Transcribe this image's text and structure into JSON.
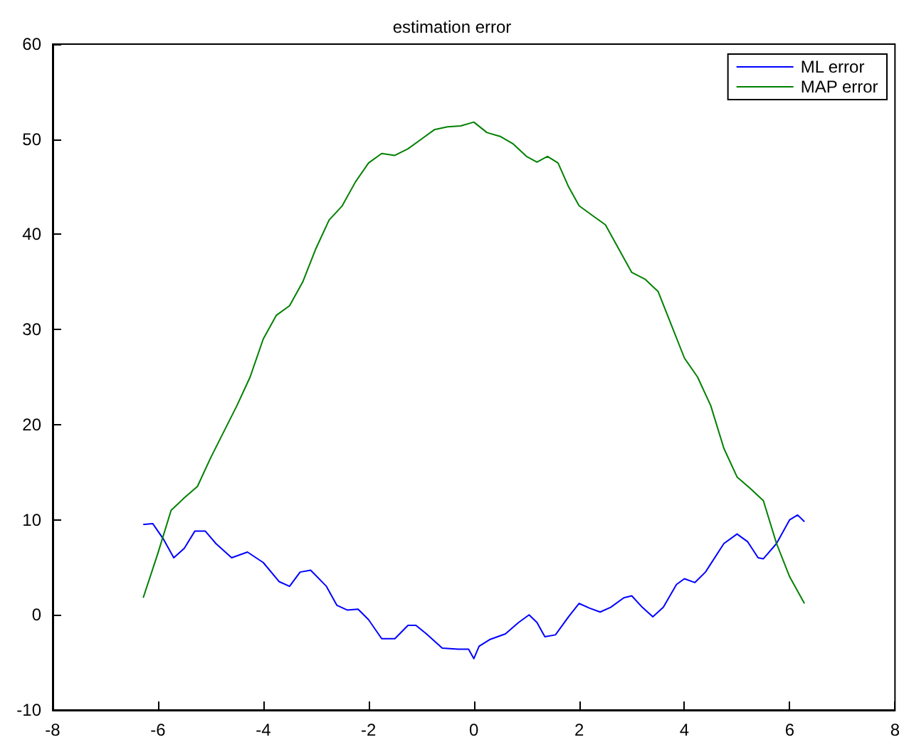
{
  "chart_data": {
    "type": "line",
    "title": "estimation error",
    "xlim": [
      -8,
      8
    ],
    "xticks": [
      -8,
      -6,
      -4,
      -2,
      0,
      2,
      4,
      6,
      8
    ],
    "ylim": [
      -10,
      60
    ],
    "yticks": [
      -10,
      0,
      10,
      20,
      30,
      40,
      50,
      60
    ],
    "grid": false,
    "legend": "top right",
    "marker": "none",
    "line_style": "solid",
    "series": [
      {
        "name": "ML error",
        "color": "#0000ff",
        "x": [
          -6.28,
          -6.1,
          -5.9,
          -5.7,
          -5.5,
          -5.3,
          -5.1,
          -4.9,
          -4.6,
          -4.3,
          -4.0,
          -3.7,
          -3.5,
          -3.3,
          -3.1,
          -2.8,
          -2.6,
          -2.4,
          -2.2,
          -2.0,
          -1.75,
          -1.5,
          -1.25,
          -1.1,
          -0.9,
          -0.6,
          -0.3,
          -0.1,
          0,
          0.1,
          0.3,
          0.6,
          0.85,
          1.05,
          1.2,
          1.35,
          1.55,
          1.8,
          2.0,
          2.2,
          2.4,
          2.6,
          2.85,
          3.0,
          3.2,
          3.4,
          3.6,
          3.85,
          4.0,
          4.2,
          4.4,
          4.75,
          5.0,
          5.2,
          5.4,
          5.5,
          5.75,
          6.0,
          6.15,
          6.28
        ],
        "values": [
          9.5,
          9.6,
          8,
          6,
          7,
          8.8,
          8.8,
          7.5,
          6,
          6.6,
          5.5,
          3.5,
          3.0,
          4.5,
          4.7,
          3,
          1,
          0.5,
          0.6,
          -0.5,
          -2.5,
          -2.5,
          -1.1,
          -1.1,
          -2,
          -3.5,
          -3.6,
          -3.6,
          -4.6,
          -3.3,
          -2.6,
          -2,
          -0.8,
          0,
          -0.8,
          -2.3,
          -2.1,
          -0.2,
          1.2,
          0.7,
          0.3,
          0.8,
          1.8,
          2.0,
          0.8,
          -0.2,
          0.8,
          3.2,
          3.8,
          3.4,
          4.5,
          7.5,
          8.5,
          7.7,
          6,
          5.9,
          7.5,
          10,
          10.5,
          9.8
        ]
      },
      {
        "name": "MAP error",
        "color": "#008000",
        "x": [
          -6.28,
          -6.0,
          -5.75,
          -5.5,
          -5.25,
          -5.0,
          -4.5,
          -4.25,
          -4.0,
          -3.75,
          -3.5,
          -3.25,
          -3.0,
          -2.75,
          -2.5,
          -2.25,
          -2.0,
          -1.75,
          -1.5,
          -1.25,
          -1.0,
          -0.75,
          -0.5,
          -0.25,
          0,
          0.25,
          0.5,
          0.75,
          1.0,
          1.2,
          1.4,
          1.6,
          1.8,
          2.0,
          2.25,
          2.5,
          2.75,
          3.0,
          3.25,
          3.5,
          3.75,
          4.0,
          4.25,
          4.5,
          4.75,
          5.0,
          5.25,
          5.5,
          5.75,
          6.0,
          6.28
        ],
        "values": [
          1.8,
          6.5,
          11,
          12.3,
          13.5,
          16.5,
          22,
          25,
          29,
          31.5,
          32.5,
          35,
          38.5,
          41.5,
          43,
          45.5,
          47.5,
          48.5,
          48.3,
          49,
          50,
          51,
          51.3,
          51.4,
          51.8,
          50.7,
          50.3,
          49.5,
          48.2,
          47.6,
          48.2,
          47.5,
          45,
          43,
          42,
          41,
          38.5,
          36,
          35.3,
          34,
          30.5,
          27,
          25,
          22,
          17.5,
          14.5,
          13.3,
          12,
          7.5,
          4,
          1.2
        ]
      }
    ]
  }
}
